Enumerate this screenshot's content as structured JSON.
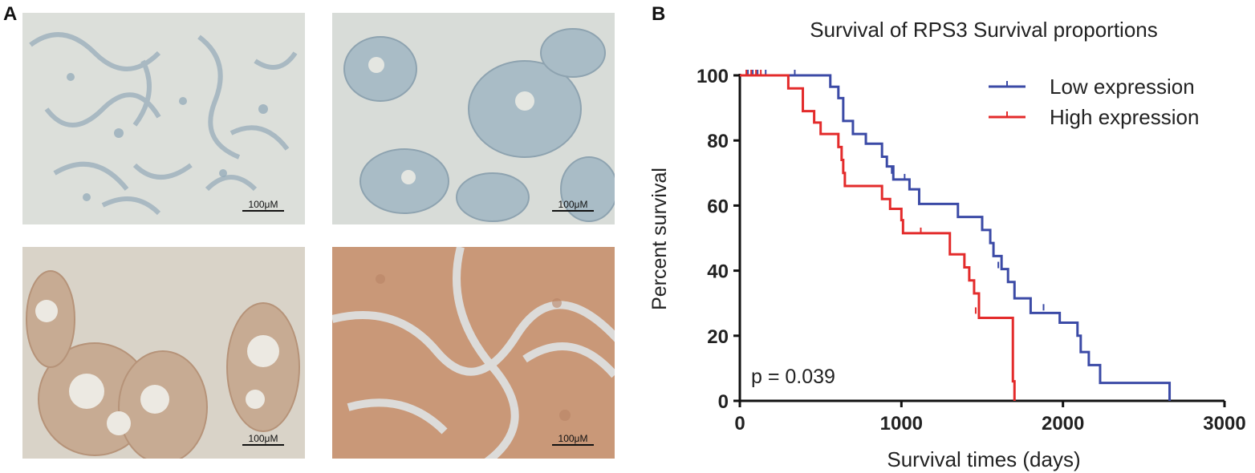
{
  "panel_a": {
    "label": "A",
    "images": [
      {
        "scale_label": "100μM",
        "stain": "negative"
      },
      {
        "scale_label": "100μM",
        "stain": "negative"
      },
      {
        "scale_label": "100μM",
        "stain": "moderate"
      },
      {
        "scale_label": "100μM",
        "stain": "strong"
      }
    ]
  },
  "panel_b": {
    "label": "B"
  },
  "chart_data": {
    "type": "line",
    "subtype": "kaplan-meier-step",
    "title": "Survival of RPS3 Survival proportions",
    "xlabel": "Survival times (days)",
    "ylabel": "Percent survival",
    "xlim": [
      0,
      3000
    ],
    "ylim": [
      0,
      100
    ],
    "xticks": [
      0,
      1000,
      2000,
      3000
    ],
    "yticks": [
      0,
      20,
      40,
      60,
      80,
      100
    ],
    "grid": false,
    "legend_position": "top-right",
    "annotation": "p = 0.039",
    "colors": {
      "low": "#3b4aa6",
      "high": "#e32b2b"
    },
    "series": [
      {
        "name": "Low expression",
        "color": "#3b4aa6",
        "steps": [
          [
            0,
            100
          ],
          [
            530,
            100
          ],
          [
            560,
            96.5
          ],
          [
            610,
            93
          ],
          [
            640,
            86
          ],
          [
            700,
            82
          ],
          [
            780,
            79
          ],
          [
            880,
            75
          ],
          [
            910,
            72
          ],
          [
            950,
            68
          ],
          [
            1050,
            65
          ],
          [
            1110,
            60.5
          ],
          [
            1350,
            56.5
          ],
          [
            1500,
            52.5
          ],
          [
            1550,
            48.5
          ],
          [
            1570,
            44.5
          ],
          [
            1620,
            40.5
          ],
          [
            1660,
            36.5
          ],
          [
            1700,
            31.5
          ],
          [
            1800,
            27
          ],
          [
            1980,
            24
          ],
          [
            2090,
            20
          ],
          [
            2110,
            15
          ],
          [
            2160,
            11
          ],
          [
            2230,
            5.5
          ],
          [
            2660,
            5.5
          ],
          [
            2660,
            0
          ]
        ],
        "censor": [
          [
            50,
            100
          ],
          [
            80,
            100
          ],
          [
            110,
            100
          ],
          [
            160,
            100
          ],
          [
            340,
            100
          ],
          [
            940,
            70
          ],
          [
            1020,
            68
          ],
          [
            1600,
            41
          ],
          [
            1880,
            28
          ]
        ]
      },
      {
        "name": "High expression",
        "color": "#e32b2b",
        "steps": [
          [
            0,
            100
          ],
          [
            280,
            100
          ],
          [
            300,
            96
          ],
          [
            390,
            89
          ],
          [
            460,
            85.5
          ],
          [
            500,
            82
          ],
          [
            610,
            78
          ],
          [
            630,
            74
          ],
          [
            640,
            70
          ],
          [
            650,
            66
          ],
          [
            750,
            66
          ],
          [
            880,
            62
          ],
          [
            930,
            59
          ],
          [
            1000,
            55.5
          ],
          [
            1010,
            51.5
          ],
          [
            1300,
            51.5
          ],
          [
            1300,
            45
          ],
          [
            1390,
            41
          ],
          [
            1420,
            37
          ],
          [
            1450,
            33
          ],
          [
            1480,
            25.5
          ],
          [
            1690,
            25.5
          ],
          [
            1690,
            6
          ],
          [
            1700,
            0
          ]
        ],
        "censor": [
          [
            40,
            100
          ],
          [
            70,
            100
          ],
          [
            100,
            100
          ],
          [
            130,
            100
          ],
          [
            880,
            62
          ],
          [
            1120,
            51.5
          ],
          [
            1460,
            27
          ]
        ]
      }
    ]
  }
}
